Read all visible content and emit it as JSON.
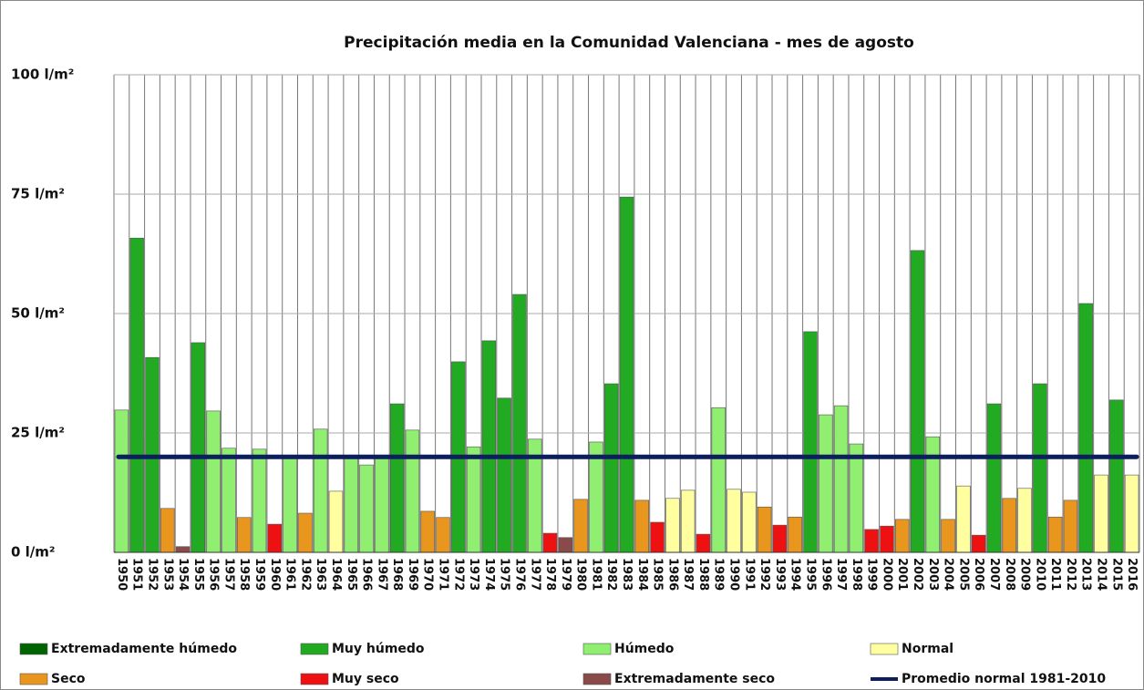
{
  "chart_data": {
    "type": "bar",
    "title": "Precipitación media en la Comunidad Valenciana - mes de agosto",
    "categories": [
      "1950",
      "1951",
      "1952",
      "1953",
      "1954",
      "1955",
      "1956",
      "1957",
      "1958",
      "1959",
      "1960",
      "1961",
      "1962",
      "1963",
      "1964",
      "1965",
      "1966",
      "1967",
      "1968",
      "1969",
      "1970",
      "1971",
      "1972",
      "1973",
      "1974",
      "1975",
      "1976",
      "1977",
      "1978",
      "1979",
      "1980",
      "1981",
      "1982",
      "1983",
      "1984",
      "1985",
      "1986",
      "1987",
      "1988",
      "1989",
      "1990",
      "1991",
      "1992",
      "1993",
      "1994",
      "1995",
      "1996",
      "1997",
      "1998",
      "1999",
      "2000",
      "2001",
      "2002",
      "2003",
      "2004",
      "2005",
      "2006",
      "2007",
      "2008",
      "2009",
      "2010",
      "2011",
      "2012",
      "2013",
      "2014",
      "2015",
      "2016"
    ],
    "values": [
      29.8,
      65.8,
      40.8,
      9.2,
      1.2,
      43.9,
      29.6,
      21.8,
      7.3,
      21.6,
      5.9,
      20.2,
      8.2,
      25.8,
      12.8,
      19.8,
      18.3,
      19.8,
      31.1,
      25.6,
      8.6,
      7.3,
      39.9,
      22.1,
      44.3,
      32.3,
      54.0,
      23.7,
      4.0,
      3.1,
      11.1,
      23.1,
      35.3,
      74.4,
      10.9,
      6.3,
      11.3,
      13.0,
      3.8,
      30.3,
      13.2,
      12.6,
      9.5,
      5.7,
      7.4,
      46.2,
      28.8,
      30.7,
      22.7,
      4.8,
      5.5,
      6.9,
      63.2,
      24.2,
      6.9,
      13.9,
      3.6,
      31.1,
      11.3,
      13.4,
      35.3,
      7.4,
      10.9,
      52.1,
      16.2,
      31.9,
      16.2
    ],
    "colors": [
      "#90ee70",
      "#22aa22",
      "#22aa22",
      "#e8961e",
      "#8b4a4a",
      "#22aa22",
      "#90ee70",
      "#90ee70",
      "#e8961e",
      "#90ee70",
      "#ee1111",
      "#90ee70",
      "#e8961e",
      "#90ee70",
      "#ffffa0",
      "#90ee70",
      "#90ee70",
      "#90ee70",
      "#22aa22",
      "#90ee70",
      "#e8961e",
      "#e8961e",
      "#22aa22",
      "#90ee70",
      "#22aa22",
      "#22aa22",
      "#22aa22",
      "#90ee70",
      "#ee1111",
      "#8b4a4a",
      "#e8961e",
      "#90ee70",
      "#22aa22",
      "#22aa22",
      "#e8961e",
      "#ee1111",
      "#ffffa0",
      "#ffffa0",
      "#ee1111",
      "#90ee70",
      "#ffffa0",
      "#ffffa0",
      "#e8961e",
      "#ee1111",
      "#e8961e",
      "#22aa22",
      "#90ee70",
      "#90ee70",
      "#90ee70",
      "#ee1111",
      "#ee1111",
      "#e8961e",
      "#22aa22",
      "#90ee70",
      "#e8961e",
      "#ffffa0",
      "#ee1111",
      "#22aa22",
      "#e8961e",
      "#ffffa0",
      "#22aa22",
      "#e8961e",
      "#e8961e",
      "#22aa22",
      "#ffffa0",
      "#22aa22",
      "#ffffa0"
    ],
    "legend": [
      {
        "name": "Extremadamente húmedo",
        "color": "#006400"
      },
      {
        "name": "Muy húmedo",
        "color": "#22aa22"
      },
      {
        "name": "Húmedo",
        "color": "#90ee70"
      },
      {
        "name": "Normal",
        "color": "#ffffa0"
      },
      {
        "name": "Seco",
        "color": "#e8961e"
      },
      {
        "name": "Muy seco",
        "color": "#ee1111"
      },
      {
        "name": "Extremadamente seco",
        "color": "#8b4a4a"
      }
    ],
    "reference_line": {
      "name": "Promedio normal 1981-2010",
      "value": 20,
      "color": "#0a1f5c"
    },
    "ylim": [
      0,
      100
    ],
    "yticks": [
      {
        "value": 0,
        "label": "0 l/m²"
      },
      {
        "value": 25,
        "label": "25 l/m²"
      },
      {
        "value": 50,
        "label": "50 l/m²"
      },
      {
        "value": 75,
        "label": "75 l/m²"
      },
      {
        "value": 100,
        "label": "100 l/m²"
      }
    ],
    "grid": true
  }
}
